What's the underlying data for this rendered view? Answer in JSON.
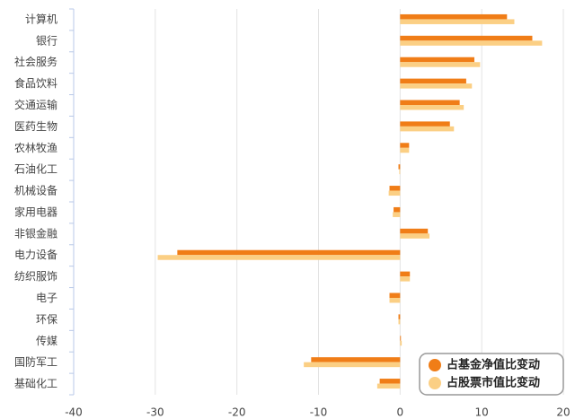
{
  "chart_data": {
    "type": "hbar",
    "categories": [
      "计算机",
      "银行",
      "社会服务",
      "食品饮料",
      "交通运输",
      "医药生物",
      "农林牧渔",
      "石油化工",
      "机械设备",
      "家用电器",
      "非银金融",
      "电力设备",
      "纺织服饰",
      "电子",
      "环保",
      "传媒",
      "国防军工",
      "基础化工"
    ],
    "series": [
      {
        "name": "占基金净值比变动",
        "color": "#f07d17",
        "values": [
          13.1,
          16.2,
          9.1,
          8.1,
          7.3,
          6.1,
          1.1,
          -0.2,
          -1.3,
          -0.8,
          3.4,
          -27.3,
          1.2,
          -1.3,
          -0.2,
          0.1,
          -10.9,
          -2.5
        ]
      },
      {
        "name": "占股票市值比变动",
        "color": "#fbcf84",
        "values": [
          14.0,
          17.4,
          9.8,
          8.8,
          7.8,
          6.6,
          1.1,
          -0.1,
          -1.4,
          -0.9,
          3.6,
          -29.7,
          1.2,
          -1.3,
          -0.2,
          0.2,
          -11.8,
          -2.8
        ]
      }
    ],
    "xlim": [
      -40,
      20
    ],
    "xticks": [
      -40,
      -30,
      -20,
      -10,
      0,
      10,
      20
    ],
    "grid": true,
    "legend": "lower-right"
  }
}
